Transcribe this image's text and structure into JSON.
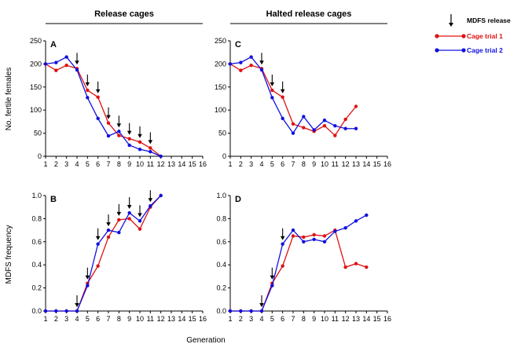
{
  "colors": {
    "trial1": "#e01010",
    "trial2": "#1010e0",
    "axis": "#000000"
  },
  "column_titles": [
    "Release cages",
    "Halted release cages"
  ],
  "xlabel": "Generation",
  "ylabels": {
    "top": "No. fertile females",
    "bottom": "MDFS frequency"
  },
  "legend": [
    {
      "label": "MDFS release",
      "marker": "down-arrow-icon"
    },
    {
      "label": "Cage trial 1",
      "color": "#e01010"
    },
    {
      "label": "Cage trial 2",
      "color": "#1010e0"
    }
  ],
  "chart_data": [
    {
      "panel": "A",
      "type": "line",
      "x_ticks": [
        1,
        2,
        3,
        4,
        5,
        6,
        7,
        8,
        9,
        10,
        11,
        12,
        13,
        14,
        15,
        16
      ],
      "y_ticks": [
        0,
        50,
        100,
        150,
        200,
        250
      ],
      "ylim": [
        0,
        250
      ],
      "xlim": [
        1,
        16
      ],
      "series": [
        {
          "name": "Cage trial 1",
          "x": [
            1,
            2,
            3,
            4,
            5,
            6,
            7,
            8,
            9,
            10,
            11,
            12
          ],
          "y": [
            200,
            186,
            197,
            190,
            143,
            128,
            72,
            45,
            38,
            31,
            18,
            0
          ]
        },
        {
          "name": "Cage trial 2",
          "x": [
            1,
            2,
            3,
            4,
            5,
            6,
            7,
            8,
            9,
            10,
            11,
            12
          ],
          "y": [
            200,
            203,
            215,
            187,
            127,
            82,
            44,
            54,
            24,
            15,
            10,
            0
          ]
        }
      ],
      "release_arrows": [
        4,
        5,
        6,
        7,
        8,
        9,
        10,
        11
      ]
    },
    {
      "panel": "C",
      "type": "line",
      "x_ticks": [
        1,
        2,
        3,
        4,
        5,
        6,
        7,
        8,
        9,
        10,
        11,
        12,
        13,
        14,
        15,
        16
      ],
      "y_ticks": [
        0,
        50,
        100,
        150,
        200,
        250
      ],
      "ylim": [
        0,
        250
      ],
      "xlim": [
        1,
        16
      ],
      "series": [
        {
          "name": "Cage trial 1",
          "x": [
            1,
            2,
            3,
            4,
            5,
            6,
            7,
            8,
            9,
            10,
            11,
            12,
            13
          ],
          "y": [
            200,
            186,
            197,
            190,
            143,
            128,
            70,
            62,
            54,
            66,
            45,
            80,
            108
          ]
        },
        {
          "name": "Cage trial 2",
          "x": [
            1,
            2,
            3,
            4,
            5,
            6,
            7,
            8,
            9,
            10,
            11,
            12,
            13
          ],
          "y": [
            200,
            203,
            215,
            187,
            127,
            82,
            50,
            86,
            57,
            78,
            66,
            60,
            60
          ]
        }
      ],
      "release_arrows": [
        4,
        5,
        6
      ]
    },
    {
      "panel": "B",
      "type": "line",
      "x_ticks": [
        1,
        2,
        3,
        4,
        5,
        6,
        7,
        8,
        9,
        10,
        11,
        12,
        13,
        14,
        15,
        16
      ],
      "y_ticks": [
        0.0,
        0.2,
        0.4,
        0.6,
        0.8,
        1.0
      ],
      "ylim": [
        0,
        1
      ],
      "xlim": [
        1,
        16
      ],
      "series": [
        {
          "name": "Cage trial 1",
          "x": [
            1,
            2,
            3,
            4,
            5,
            6,
            7,
            8,
            9,
            10,
            11,
            12
          ],
          "y": [
            0,
            0,
            0,
            0,
            0.24,
            0.39,
            0.64,
            0.79,
            0.8,
            0.71,
            0.9,
            1.0
          ]
        },
        {
          "name": "Cage trial 2",
          "x": [
            1,
            2,
            3,
            4,
            5,
            6,
            7,
            8,
            9,
            10,
            11,
            12
          ],
          "y": [
            0,
            0,
            0,
            0,
            0.22,
            0.58,
            0.7,
            0.68,
            0.85,
            0.78,
            0.91,
            1.0
          ]
        }
      ],
      "release_arrows": [
        4,
        5,
        6,
        7,
        8,
        9,
        10,
        11
      ]
    },
    {
      "panel": "D",
      "type": "line",
      "x_ticks": [
        1,
        2,
        3,
        4,
        5,
        6,
        7,
        8,
        9,
        10,
        11,
        12,
        13,
        14,
        15,
        16
      ],
      "y_ticks": [
        0.0,
        0.2,
        0.4,
        0.6,
        0.8,
        1.0
      ],
      "ylim": [
        0,
        1
      ],
      "xlim": [
        1,
        16
      ],
      "series": [
        {
          "name": "Cage trial 1",
          "x": [
            1,
            2,
            3,
            4,
            5,
            6,
            7,
            8,
            9,
            10,
            11,
            12,
            13,
            14
          ],
          "y": [
            0,
            0,
            0,
            0,
            0.24,
            0.39,
            0.65,
            0.64,
            0.66,
            0.65,
            0.7,
            0.38,
            0.41,
            0.38
          ]
        },
        {
          "name": "Cage trial 2",
          "x": [
            1,
            2,
            3,
            4,
            5,
            6,
            7,
            8,
            9,
            10,
            11,
            12,
            13,
            14
          ],
          "y": [
            0,
            0,
            0,
            0,
            0.22,
            0.58,
            0.7,
            0.6,
            0.62,
            0.6,
            0.69,
            0.72,
            0.78,
            0.83
          ]
        }
      ],
      "release_arrows": [
        4,
        5,
        6
      ]
    }
  ]
}
